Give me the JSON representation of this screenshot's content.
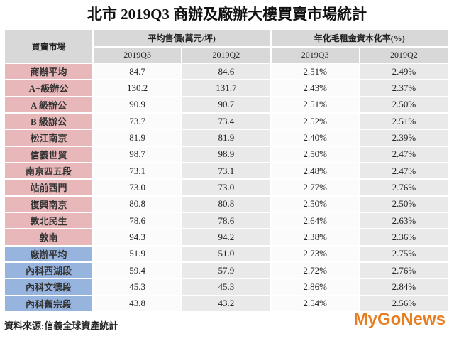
{
  "title": "北市 2019Q3 商辦及廠辦大樓買賣市場統計",
  "table": {
    "header": {
      "market": "買賣市場",
      "price_group": "平均售價(萬元/坪)",
      "rate_group": "年化毛租金資本化率(%)",
      "sub": [
        "2019Q3",
        "2019Q2",
        "2019Q3",
        "2019Q2"
      ]
    },
    "row_groups": [
      {
        "color": "#e8b7b9",
        "rows": [
          [
            "商辦平均",
            "84.7",
            "84.6",
            "2.51%",
            "2.49%"
          ],
          [
            "A+級辦公",
            "130.2",
            "131.7",
            "2.43%",
            "2.37%"
          ],
          [
            "A 級辦公",
            "90.9",
            "90.7",
            "2.51%",
            "2.50%"
          ],
          [
            "B 級辦公",
            "73.7",
            "73.4",
            "2.52%",
            "2.51%"
          ],
          [
            "松江南京",
            "81.9",
            "81.9",
            "2.40%",
            "2.39%"
          ],
          [
            "信義世貿",
            "98.7",
            "98.9",
            "2.50%",
            "2.47%"
          ],
          [
            "南京四五段",
            "73.1",
            "73.1",
            "2.48%",
            "2.47%"
          ],
          [
            "站前西門",
            "73.0",
            "73.0",
            "2.77%",
            "2.76%"
          ],
          [
            "復興南京",
            "80.8",
            "80.8",
            "2.50%",
            "2.50%"
          ],
          [
            "敦北民生",
            "78.6",
            "78.6",
            "2.64%",
            "2.63%"
          ],
          [
            "敦南",
            "94.3",
            "94.2",
            "2.38%",
            "2.36%"
          ]
        ]
      },
      {
        "color": "#97b4de",
        "rows": [
          [
            "廠辦平均",
            "51.9",
            "51.0",
            "2.73%",
            "2.75%"
          ],
          [
            "內科西湖段",
            "59.4",
            "57.9",
            "2.72%",
            "2.76%"
          ],
          [
            "內科文德段",
            "45.3",
            "45.3",
            "2.86%",
            "2.84%"
          ],
          [
            "內科舊宗段",
            "43.8",
            "43.2",
            "2.54%",
            "2.56%"
          ]
        ]
      }
    ]
  },
  "source": "資料來源:信義全球資產統計",
  "logo": "MyGoNews"
}
